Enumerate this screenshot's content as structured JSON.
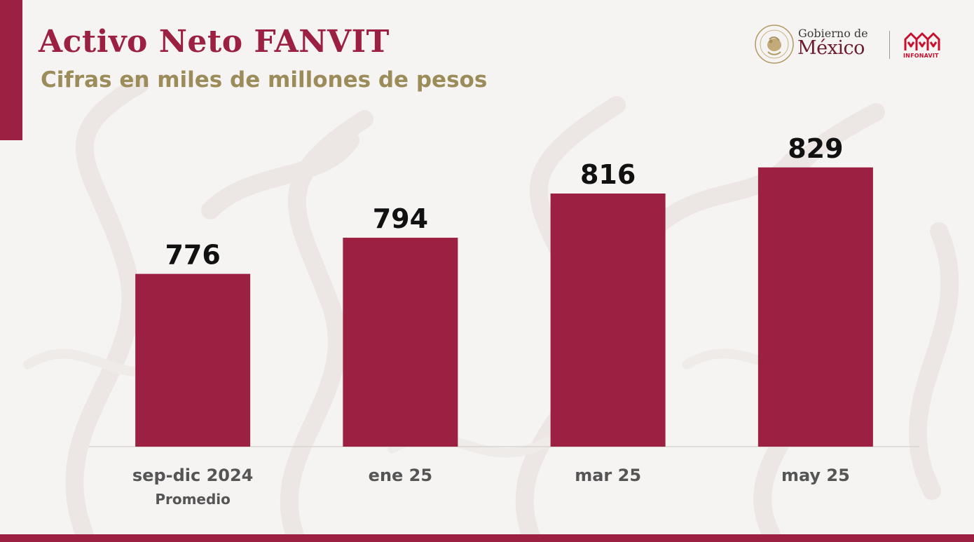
{
  "header": {
    "title": "Activo Neto FANVIT",
    "subtitle": "Cifras en miles de millones de pesos"
  },
  "logos": {
    "seal_text": "ESTADOS UNIDOS MEXICANOS",
    "gobierno_line1": "Gobierno de",
    "gobierno_line2": "México",
    "infonavit": "INFONAVIT"
  },
  "colors": {
    "accent": "#9b2042",
    "subtitle": "#9c8c5a",
    "background": "#f6f4f3"
  },
  "chart_data": {
    "type": "bar",
    "categories": [
      "sep-dic 2024",
      "ene 25",
      "mar 25",
      "may 25"
    ],
    "category_sublabels": [
      "Promedio",
      "",
      "",
      ""
    ],
    "values": [
      776,
      794,
      816,
      829
    ],
    "data_labels": [
      "776",
      "794",
      "816",
      "829"
    ],
    "title": "Activo Neto FANVIT",
    "subtitle": "Cifras en miles de millones de pesos",
    "xlabel": "",
    "ylabel": "",
    "ylim": [
      690,
      853
    ],
    "grid": false,
    "legend": "none",
    "bar_color": "#9b2042"
  }
}
